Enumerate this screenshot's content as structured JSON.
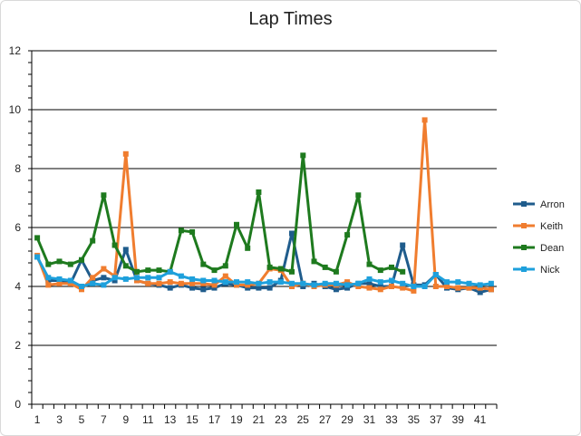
{
  "chart_data": {
    "type": "line",
    "title": "Lap Times",
    "xlabel": "",
    "ylabel": "",
    "x": [
      1,
      2,
      3,
      4,
      5,
      6,
      7,
      8,
      9,
      10,
      11,
      12,
      13,
      14,
      15,
      16,
      17,
      18,
      19,
      20,
      21,
      22,
      23,
      24,
      25,
      26,
      27,
      28,
      29,
      30,
      31,
      32,
      33,
      34,
      35,
      36,
      37,
      38,
      39,
      40,
      41,
      42
    ],
    "x_tick_labels": [
      "1",
      "3",
      "5",
      "7",
      "9",
      "11",
      "13",
      "15",
      "17",
      "19",
      "21",
      "23",
      "25",
      "27",
      "29",
      "31",
      "33",
      "35",
      "37",
      "39",
      "41"
    ],
    "ylim": [
      0,
      12
    ],
    "y_ticks": [
      0,
      2,
      4,
      6,
      8,
      10,
      12
    ],
    "grid": true,
    "legend_position": "right",
    "series": [
      {
        "name": "Arron",
        "color": "#1f5c8c",
        "values": [
          5.0,
          4.2,
          4.2,
          4.1,
          4.9,
          4.2,
          4.3,
          4.2,
          5.25,
          4.2,
          4.1,
          4.05,
          3.95,
          4.05,
          3.95,
          3.9,
          3.95,
          4.1,
          4.05,
          3.95,
          3.95,
          3.95,
          4.2,
          5.8,
          4.0,
          4.1,
          4.0,
          3.9,
          3.95,
          4.1,
          4.1,
          4.0,
          4.0,
          5.4,
          4.05,
          4.05,
          4.4,
          3.95,
          3.9,
          3.95,
          3.8,
          3.9
        ]
      },
      {
        "name": "Keith",
        "color": "#f07d2f",
        "values": [
          5.05,
          4.05,
          4.1,
          4.1,
          3.9,
          4.3,
          4.6,
          4.35,
          8.5,
          4.2,
          4.1,
          4.1,
          4.15,
          4.1,
          4.1,
          4.1,
          4.05,
          4.35,
          4.05,
          4.05,
          4.1,
          4.6,
          4.55,
          4.0,
          4.1,
          4.0,
          4.05,
          4.05,
          4.15,
          4.0,
          3.95,
          3.9,
          4.0,
          3.95,
          3.85,
          9.65,
          4.0,
          4.0,
          3.95,
          3.95,
          3.95,
          3.9
        ]
      },
      {
        "name": "Dean",
        "color": "#1e7a1e",
        "values": [
          5.65,
          4.75,
          4.85,
          4.75,
          4.9,
          5.55,
          7.1,
          5.4,
          4.7,
          4.5,
          4.55,
          4.55,
          4.5,
          5.9,
          5.85,
          4.75,
          4.55,
          4.7,
          6.1,
          5.3,
          7.2,
          4.65,
          4.6,
          4.5,
          8.45,
          4.85,
          4.65,
          4.5,
          5.75,
          7.1,
          4.75,
          4.55,
          4.65,
          4.5,
          null,
          null,
          null,
          null,
          null,
          null,
          null,
          null
        ]
      },
      {
        "name": "Nick",
        "color": "#1ea0dc",
        "values": [
          5.0,
          4.3,
          4.25,
          4.2,
          4.0,
          4.1,
          4.05,
          4.3,
          4.25,
          4.3,
          4.3,
          4.3,
          4.5,
          4.35,
          4.25,
          4.2,
          4.2,
          4.15,
          4.15,
          4.15,
          4.1,
          4.15,
          4.15,
          4.1,
          4.1,
          4.05,
          4.1,
          4.1,
          4.05,
          4.1,
          4.25,
          4.15,
          4.2,
          4.1,
          4.0,
          4.0,
          4.4,
          4.15,
          4.15,
          4.1,
          4.05,
          4.1
        ]
      }
    ]
  }
}
